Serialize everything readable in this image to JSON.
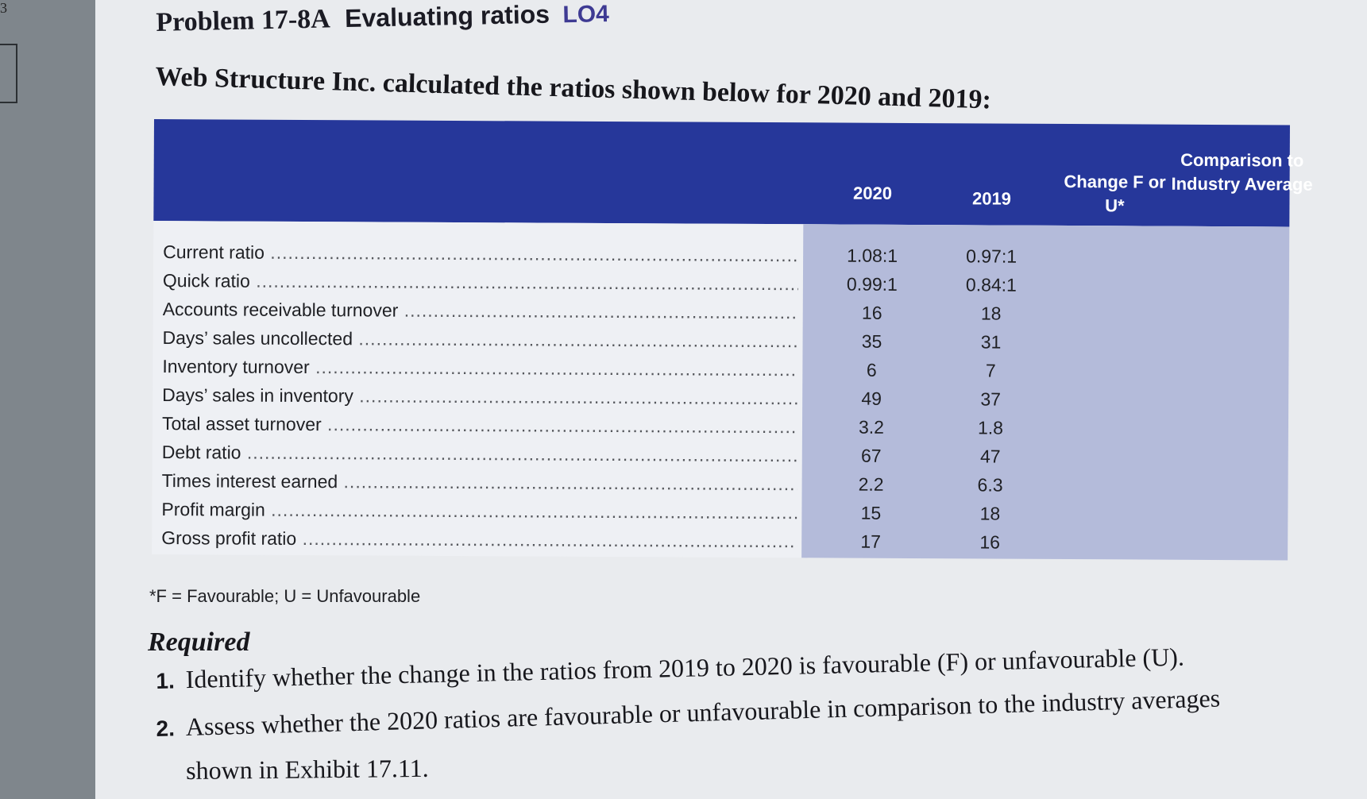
{
  "margin_number": "3",
  "problem": {
    "number": "Problem 17-8A",
    "title": "Evaluating ratios",
    "lo": "LO4"
  },
  "intro": "Web Structure Inc. calculated the ratios shown below for 2020 and 2019:",
  "table": {
    "headers": {
      "y2020": "2020",
      "y2019": "2019",
      "change": "Change F or U*",
      "comparison": "Comparison to Industry Average"
    },
    "rows": [
      {
        "label": "Current ratio",
        "y2020": "1.08:1",
        "y2019": "0.97:1"
      },
      {
        "label": "Quick ratio",
        "y2020": "0.99:1",
        "y2019": "0.84:1"
      },
      {
        "label": "Accounts receivable turnover",
        "y2020": "16",
        "y2019": "18"
      },
      {
        "label": "Days’ sales uncollected",
        "y2020": "35",
        "y2019": "31"
      },
      {
        "label": "Inventory turnover",
        "y2020": "6",
        "y2019": "7"
      },
      {
        "label": "Days’ sales in inventory",
        "y2020": "49",
        "y2019": "37"
      },
      {
        "label": "Total asset turnover",
        "y2020": "3.2",
        "y2019": "1.8"
      },
      {
        "label": "Debt ratio",
        "y2020": "67",
        "y2019": "47"
      },
      {
        "label": "Times interest earned",
        "y2020": "2.2",
        "y2019": "6.3"
      },
      {
        "label": "Profit margin",
        "y2020": "15",
        "y2019": "18"
      },
      {
        "label": "Gross profit ratio",
        "y2020": "17",
        "y2019": "16"
      }
    ]
  },
  "footnote": "*F = Favourable; U = Unfavourable",
  "required": {
    "heading": "Required",
    "items": [
      {
        "num": "1.",
        "text": "Identify whether the change in the ratios from 2019 to 2020 is favourable (F) or unfavourable (U)."
      },
      {
        "num": "2.",
        "text": "Assess whether the 2020 ratios are favourable or unfavourable in comparison to the industry averages",
        "text_cont": "shown in Exhibit 17.11."
      }
    ]
  }
}
